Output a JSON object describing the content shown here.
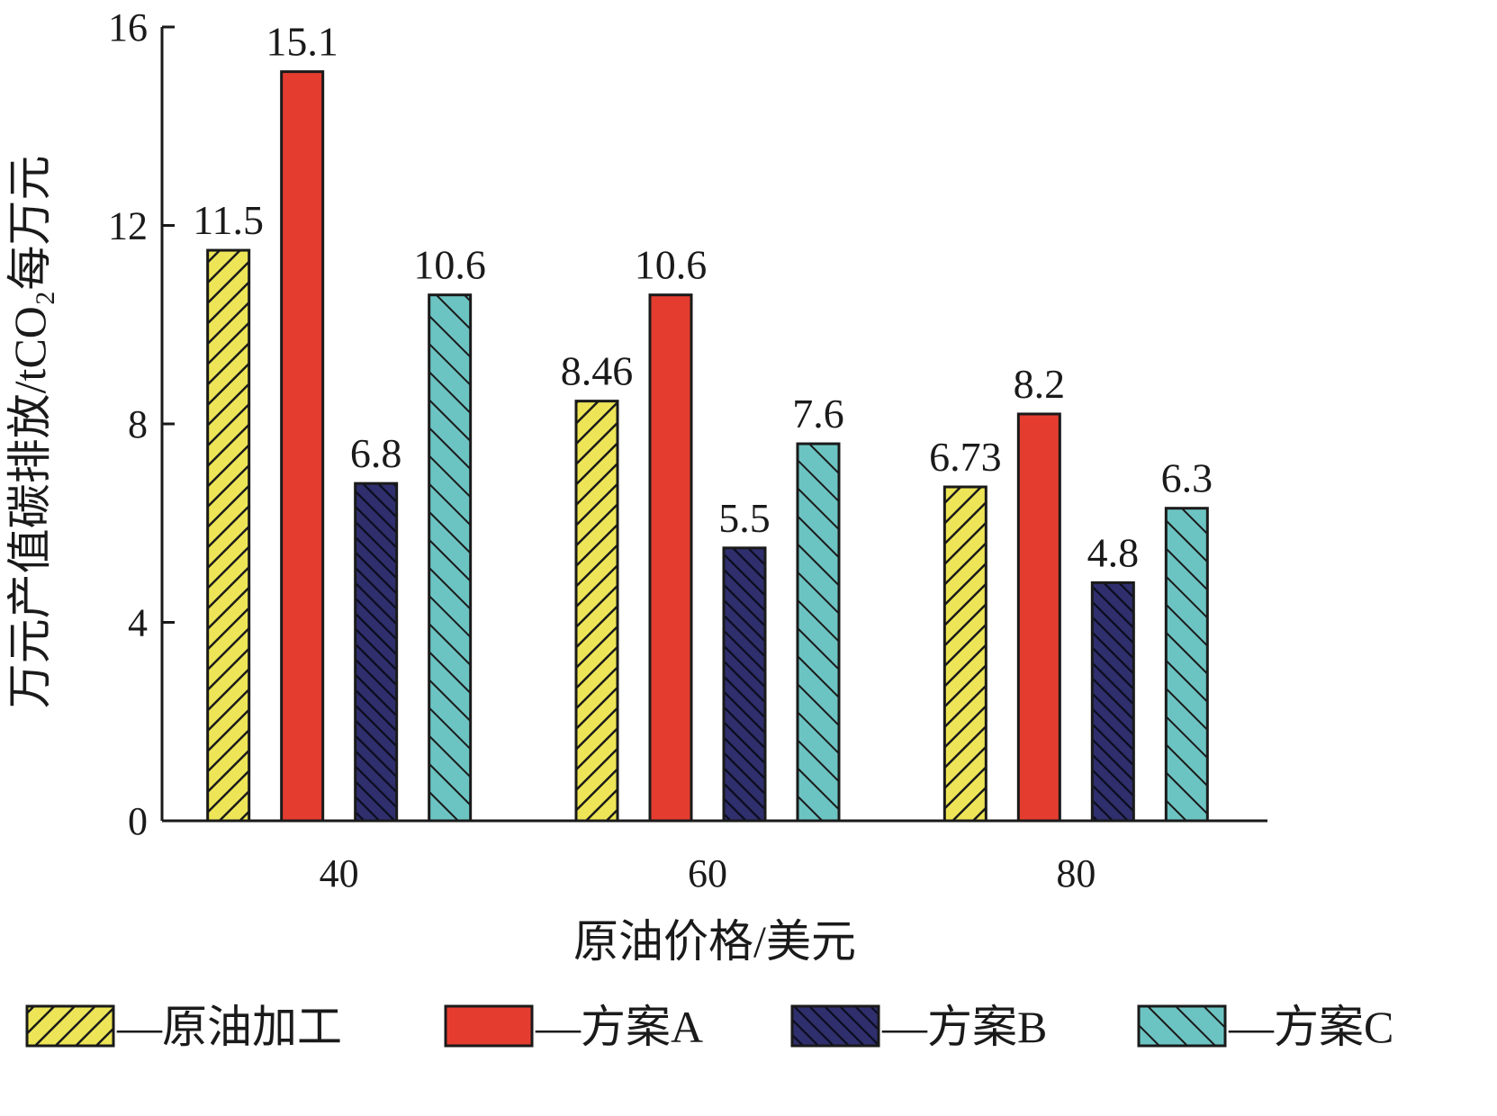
{
  "chart_data": {
    "type": "bar",
    "categories": [
      "40",
      "60",
      "80"
    ],
    "xlabel": "原油价格/美元",
    "ylabel": "万元产值碳排放/tCO₂每万元",
    "ylim": [
      0,
      16
    ],
    "yticks": [
      "0",
      "4",
      "8",
      "12",
      "16"
    ],
    "grid": false,
    "legend_position": "bottom",
    "series": [
      {
        "name": "—原油加工",
        "values": [
          11.5,
          8.46,
          6.73
        ],
        "labels": [
          "11.5",
          "8.46",
          "6.73"
        ],
        "color": "#ede557",
        "pattern": "hatch-forward"
      },
      {
        "name": "—方案A",
        "values": [
          15.1,
          10.6,
          8.2
        ],
        "labels": [
          "15.1",
          "10.6",
          "8.2"
        ],
        "color": "#e43d30",
        "pattern": "solid"
      },
      {
        "name": "—方案B",
        "values": [
          6.8,
          5.5,
          4.8
        ],
        "labels": [
          "6.8",
          "5.5",
          "4.8"
        ],
        "color": "#2f2f6e",
        "pattern": "hatch-back-dense"
      },
      {
        "name": "—方案C",
        "values": [
          10.6,
          7.6,
          6.3
        ],
        "labels": [
          "10.6",
          "7.6",
          "6.3"
        ],
        "color": "#6cc4c2",
        "pattern": "hatch-back"
      }
    ]
  }
}
